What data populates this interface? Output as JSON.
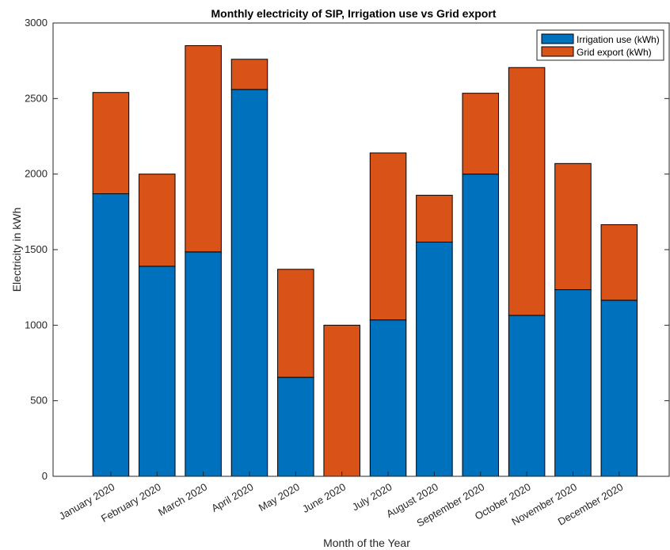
{
  "chart_data": {
    "type": "bar",
    "stacked": true,
    "title": "Monthly electricity of SIP, Irrigation use vs Grid export",
    "xlabel": "Month of the Year",
    "ylabel": "Electricity in kWh",
    "ylim": [
      0,
      3000
    ],
    "yticks": [
      0,
      500,
      1000,
      1500,
      2000,
      2500,
      3000
    ],
    "categories": [
      "January 2020",
      "February 2020",
      "March 2020",
      "April 2020",
      "May 2020",
      "June 2020",
      "July 2020",
      "August 2020",
      "September 2020",
      "October 2020",
      "November 2020",
      "December 2020"
    ],
    "series": [
      {
        "name": "Irrigation use (kWh)",
        "color": "#0072BD",
        "values": [
          1870,
          1390,
          1485,
          2560,
          655,
          0,
          1035,
          1550,
          2000,
          1065,
          1235,
          1165
        ]
      },
      {
        "name": "Grid export (kWh)",
        "color": "#D95319",
        "values": [
          670,
          610,
          1365,
          200,
          715,
          1000,
          1105,
          310,
          535,
          1640,
          835,
          500
        ]
      }
    ],
    "legend_position": "top-right",
    "grid": false
  }
}
